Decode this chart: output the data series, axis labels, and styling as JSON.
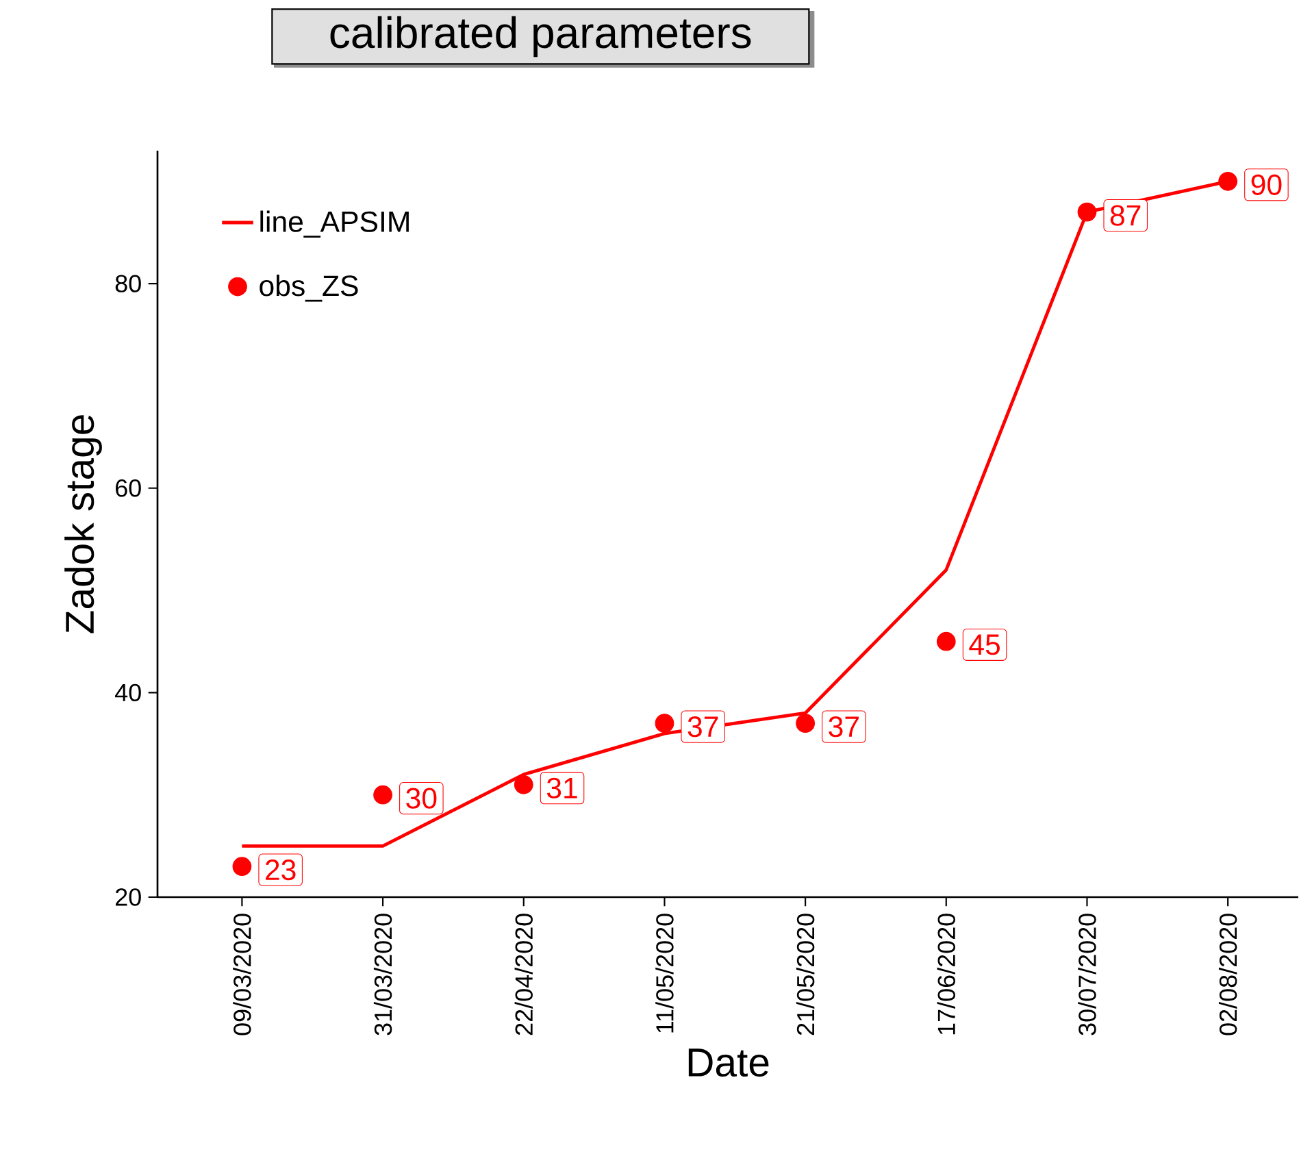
{
  "chart_data": {
    "type": "line",
    "title": "calibrated parameters",
    "xlabel": "Date",
    "ylabel": "Zadok stage",
    "categories": [
      "09/03/2020",
      "31/03/2020",
      "22/04/2020",
      "11/05/2020",
      "21/05/2020",
      "17/06/2020",
      "30/07/2020",
      "02/08/2020"
    ],
    "series": [
      {
        "name": "line_APSIM",
        "color": "#ff0000",
        "values": [
          25,
          25,
          32,
          36,
          38,
          52,
          87,
          90
        ]
      },
      {
        "name": "obs_ZS",
        "type": "scatter",
        "marker": "circle",
        "color": "#ff0000",
        "values": [
          23,
          30,
          31,
          37,
          37,
          45,
          87,
          90
        ],
        "value_labels": [
          "23",
          "30",
          "31",
          "37",
          "37",
          "45",
          "87",
          "90"
        ]
      }
    ],
    "ylim": [
      20,
      93
    ],
    "yticks": [
      20,
      40,
      60,
      80
    ],
    "legend": "top left",
    "marker": "none",
    "grid": false
  }
}
